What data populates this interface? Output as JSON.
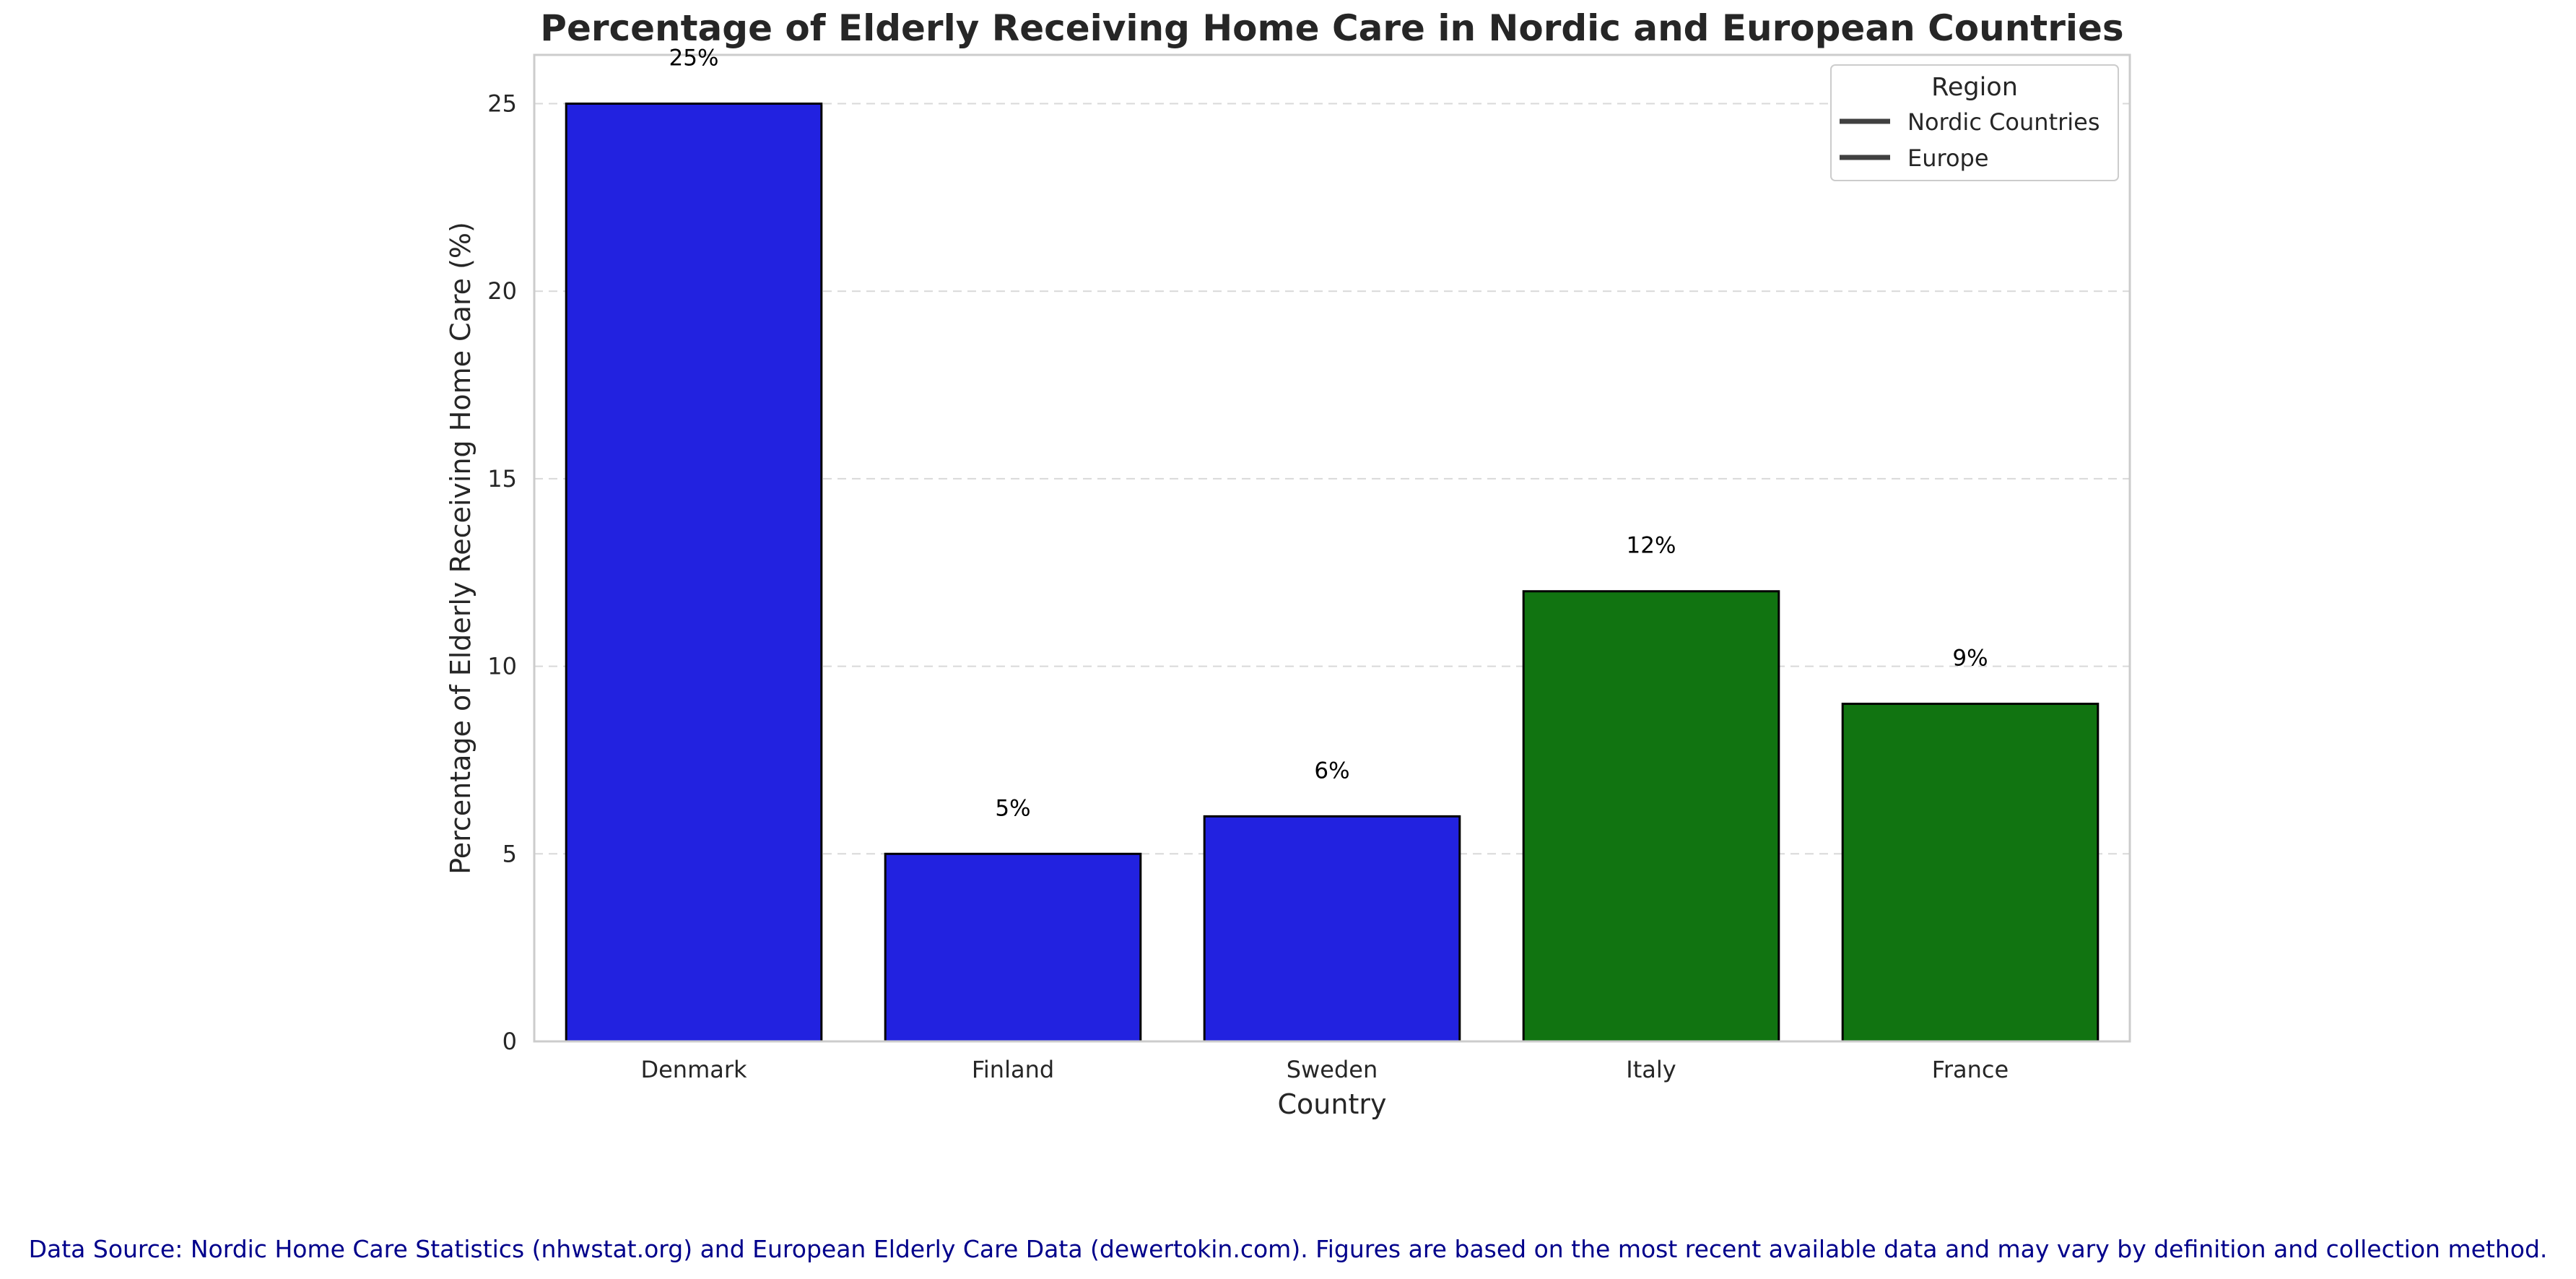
{
  "chart_data": {
    "type": "bar",
    "title": "Percentage of Elderly Receiving Home Care in Nordic and European Countries",
    "xlabel": "Country",
    "ylabel": "Percentage of Elderly Receiving Home Care (%)",
    "categories": [
      "Denmark",
      "Finland",
      "Sweden",
      "Italy",
      "France"
    ],
    "values": [
      25,
      5,
      6,
      12,
      9
    ],
    "value_labels": [
      "25%",
      "5%",
      "6%",
      "12%",
      "9%"
    ],
    "regions": [
      "Nordic Countries",
      "Nordic Countries",
      "Nordic Countries",
      "Europe",
      "Europe"
    ],
    "bar_colors": [
      "#2222e0",
      "#2222e0",
      "#2222e0",
      "#117411",
      "#117411"
    ],
    "ylim": [
      0,
      26.3
    ],
    "yticks": [
      0,
      5,
      10,
      15,
      20,
      25
    ],
    "grid": "y-dashed",
    "legend": {
      "title": "Region",
      "placement": "top-right",
      "entries": [
        "Nordic Countries",
        "Europe"
      ],
      "line_color": "#404040"
    }
  },
  "source_note": "Data Source: Nordic Home Care Statistics (nhwstat.org) and European Elderly Care Data (dewertokin.com). Figures are based on the most recent available data and may vary by definition and collection method."
}
